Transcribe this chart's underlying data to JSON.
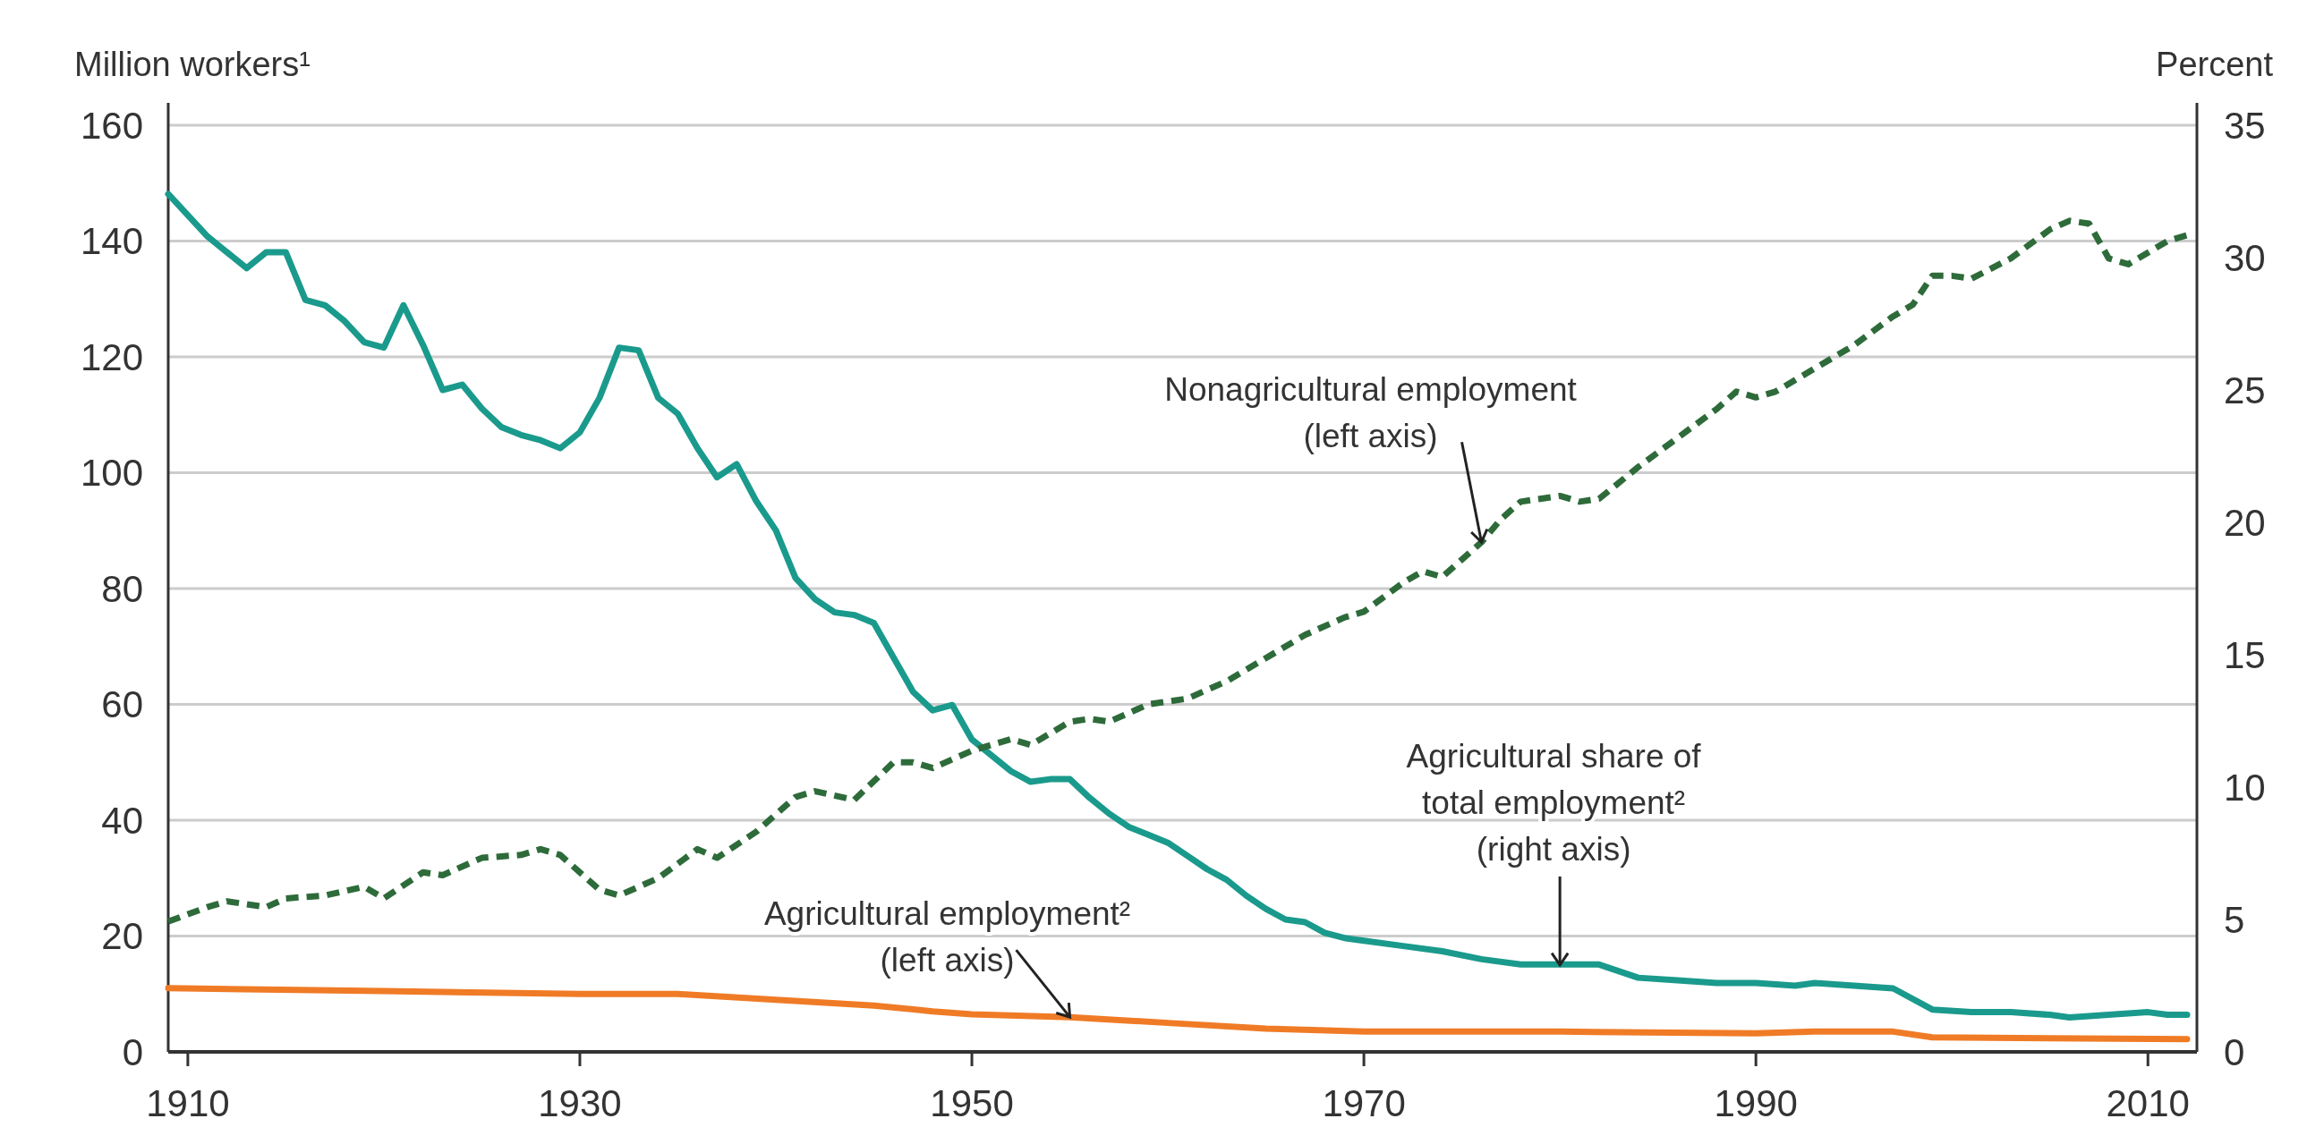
{
  "chart_data": {
    "type": "line",
    "ylabel": "Million workers¹",
    "y2label": "Percent",
    "xlim": [
      1909,
      2012.5
    ],
    "xticks": [
      1910,
      1930,
      1950,
      1970,
      1990,
      2010
    ],
    "ylim": [
      0,
      160
    ],
    "yticks": [
      0,
      20,
      40,
      60,
      80,
      100,
      120,
      140,
      160
    ],
    "y2lim": [
      0,
      35
    ],
    "y2ticks": [
      0,
      5,
      10,
      15,
      20,
      25,
      30,
      35
    ],
    "grid": "y",
    "series": [
      {
        "color": "#1a9a8c",
        "line_style": "solid",
        "axis": "y2",
        "x": [
          1909,
          1911,
          1913,
          1914,
          1915,
          1916,
          1917,
          1918,
          1919,
          1920,
          1921,
          1922,
          1923,
          1924,
          1925,
          1926,
          1927,
          1928,
          1929,
          1930,
          1931,
          1932,
          1933,
          1934,
          1935,
          1936,
          1937,
          1938,
          1939,
          1940,
          1941,
          1942,
          1943,
          1944,
          1945,
          1946,
          1947,
          1948,
          1949,
          1950,
          1951,
          1952,
          1953,
          1954,
          1955,
          1956,
          1957,
          1958,
          1959,
          1960,
          1961,
          1962,
          1963,
          1964,
          1965,
          1966,
          1967,
          1968,
          1969,
          1970,
          1972,
          1974,
          1976,
          1978,
          1980,
          1982,
          1984,
          1986,
          1988,
          1990,
          1992,
          1993,
          1995,
          1997,
          1999,
          2001,
          2003,
          2005,
          2006,
          2008,
          2010,
          2011,
          2012
        ],
        "values": [
          32.4,
          30.8,
          29.6,
          30.2,
          30.2,
          28.4,
          28.2,
          27.6,
          26.8,
          26.6,
          28.2,
          26.7,
          25.0,
          25.2,
          24.3,
          23.6,
          23.3,
          23.1,
          22.8,
          23.4,
          24.7,
          26.6,
          26.5,
          24.7,
          24.1,
          22.8,
          21.7,
          22.2,
          20.8,
          19.7,
          17.9,
          17.1,
          16.6,
          16.5,
          16.2,
          14.9,
          13.6,
          12.9,
          13.1,
          11.8,
          11.2,
          10.6,
          10.2,
          10.3,
          10.3,
          9.6,
          9.0,
          8.5,
          8.2,
          7.9,
          7.4,
          6.9,
          6.5,
          5.9,
          5.4,
          5.0,
          4.9,
          4.5,
          4.3,
          4.2,
          4.0,
          3.8,
          3.5,
          3.3,
          3.3,
          3.3,
          2.8,
          2.7,
          2.6,
          2.6,
          2.5,
          2.6,
          2.5,
          2.4,
          1.6,
          1.5,
          1.5,
          1.4,
          1.3,
          1.4,
          1.5,
          1.4,
          1.4
        ]
      },
      {
        "color": "#2e6b3a",
        "line_style": "dashed",
        "x": [
          1909,
          1911,
          1912,
          1914,
          1915,
          1917,
          1919,
          1920,
          1922,
          1923,
          1925,
          1927,
          1928,
          1929,
          1931,
          1932,
          1934,
          1936,
          1937,
          1939,
          1941,
          1942,
          1944,
          1946,
          1947,
          1948,
          1950,
          1952,
          1953,
          1955,
          1956,
          1957,
          1959,
          1961,
          1963,
          1965,
          1967,
          1969,
          1970,
          1972,
          1973,
          1974,
          1976,
          1977,
          1978,
          1980,
          1981,
          1982,
          1984,
          1986,
          1988,
          1989,
          1990,
          1991,
          1993,
          1995,
          1997,
          1998,
          1999,
          2000,
          2001,
          2003,
          2005,
          2006,
          2007,
          2008,
          2009,
          2010,
          2011,
          2012
        ],
        "values": [
          22.5,
          25,
          26,
          25,
          26.5,
          27,
          28.5,
          26.5,
          31,
          30.5,
          33.5,
          34,
          35,
          34,
          28,
          27,
          30,
          35,
          33.5,
          38,
          44,
          45,
          43.5,
          50,
          50,
          49,
          52,
          54,
          53,
          57,
          57.5,
          57,
          60,
          61,
          64,
          68,
          72,
          75,
          76,
          81,
          83,
          82,
          88,
          92,
          95,
          96,
          95,
          95.5,
          101,
          106,
          111,
          114,
          113,
          114,
          118,
          122,
          127,
          129,
          134,
          134,
          133.5,
          137,
          142,
          143.5,
          143,
          137,
          136,
          138,
          140,
          141
        ]
      },
      {
        "color": "#f07b26",
        "line_style": "solid",
        "x": [
          1909,
          1920,
          1930,
          1935,
          1940,
          1945,
          1948,
          1950,
          1955,
          1960,
          1965,
          1970,
          1980,
          1990,
          1993,
          1997,
          1999,
          2012
        ],
        "values": [
          11,
          10.5,
          10,
          10,
          9,
          8,
          7,
          6.5,
          6,
          5,
          4,
          3.5,
          3.5,
          3.2,
          3.5,
          3.5,
          2.5,
          2.2
        ]
      }
    ],
    "annotations": [
      {
        "text": "Nonagricultural employment\n(left axis)",
        "x": 1976,
        "y": 88
      },
      {
        "text": "Agricultural employment²\n(left axis)",
        "x": 1955,
        "y": 6
      },
      {
        "text": "Agricultural share of\ntotal employment²\n(right axis)",
        "x": 1980,
        "y": 15
      }
    ]
  }
}
